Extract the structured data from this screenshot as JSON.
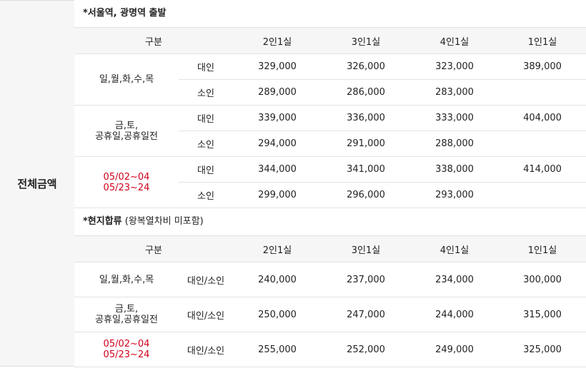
{
  "side_label": "전체금액",
  "section1": {
    "title_bold": "*서울역, 광명역 출발",
    "title_rest": "",
    "headers": [
      "구분",
      "",
      "2인1실",
      "3인1실",
      "4인1실",
      "1인1실"
    ],
    "groups": [
      {
        "label_lines": [
          "일,월,화,수,목"
        ],
        "red": false,
        "rows": [
          {
            "type": "대인",
            "v": [
              "329,000",
              "326,000",
              "323,000",
              "389,000"
            ]
          },
          {
            "type": "소인",
            "v": [
              "289,000",
              "286,000",
              "283,000",
              ""
            ]
          }
        ]
      },
      {
        "label_lines": [
          "금,토,",
          "공휴일,공휴일전"
        ],
        "red": false,
        "rows": [
          {
            "type": "대인",
            "v": [
              "339,000",
              "336,000",
              "333,000",
              "404,000"
            ]
          },
          {
            "type": "소인",
            "v": [
              "294,000",
              "291,000",
              "288,000",
              ""
            ]
          }
        ]
      },
      {
        "label_lines": [
          "05/02~04",
          "05/23~24"
        ],
        "red": true,
        "rows": [
          {
            "type": "대인",
            "v": [
              "344,000",
              "341,000",
              "338,000",
              "414,000"
            ]
          },
          {
            "type": "소인",
            "v": [
              "299,000",
              "296,000",
              "293,000",
              ""
            ]
          }
        ]
      }
    ]
  },
  "section2": {
    "title_bold": "*현지합류",
    "title_rest": " (왕복열차비 미포함)",
    "headers": [
      "구분",
      "",
      "2인1실",
      "3인1실",
      "4인1실",
      "1인1실"
    ],
    "rows": [
      {
        "label_lines": [
          "일,월,화,수,목"
        ],
        "red": false,
        "type": "대인/소인",
        "v": [
          "240,000",
          "237,000",
          "234,000",
          "300,000"
        ]
      },
      {
        "label_lines": [
          "금,토,",
          "공휴일,공휴일전"
        ],
        "red": false,
        "type": "대인/소인",
        "v": [
          "250,000",
          "247,000",
          "244,000",
          "315,000"
        ]
      },
      {
        "label_lines": [
          "05/02~04",
          "05/23~24"
        ],
        "red": true,
        "type": "대인/소인",
        "v": [
          "255,000",
          "252,000",
          "249,000",
          "325,000"
        ]
      }
    ]
  }
}
